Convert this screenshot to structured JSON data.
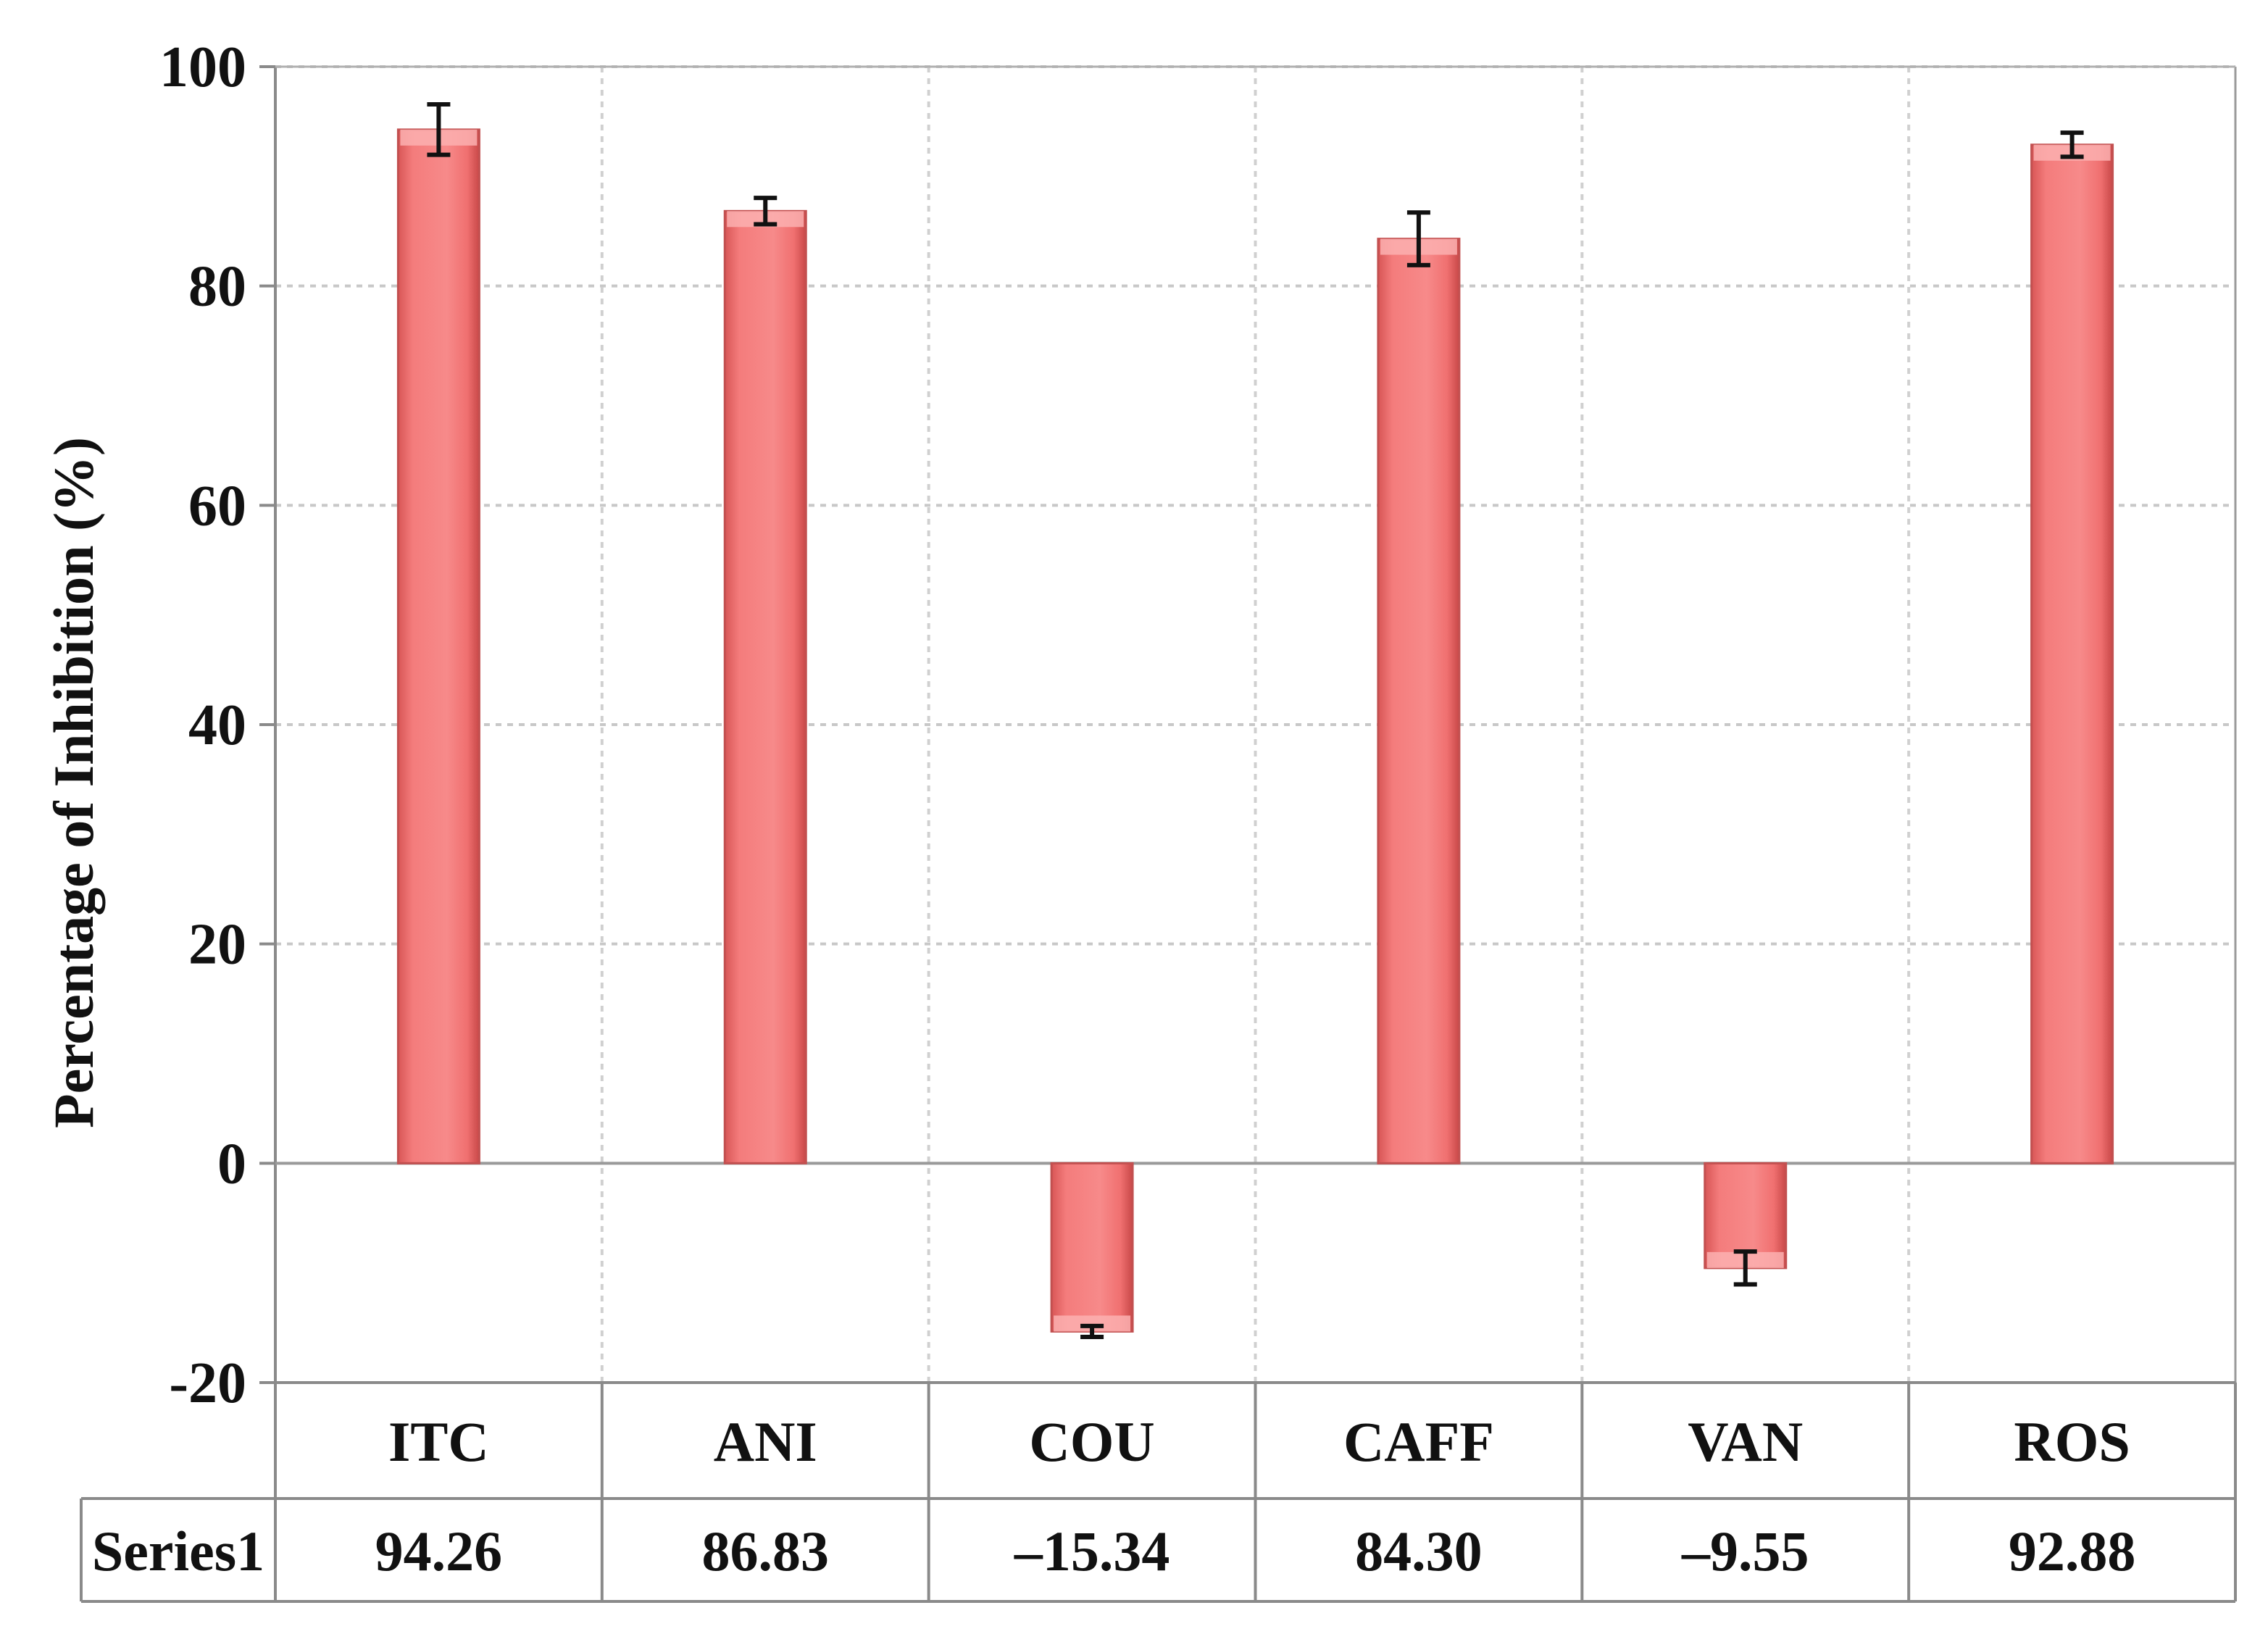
{
  "chart_data": {
    "type": "bar",
    "categories": [
      "ITC",
      "ANI",
      "COU",
      "CAFF",
      "VAN",
      "ROS"
    ],
    "series": [
      {
        "name": "Series1",
        "values": [
          94.26,
          86.83,
          -15.34,
          84.3,
          -9.55,
          92.88
        ],
        "error": [
          2.3,
          1.2,
          0.5,
          2.4,
          1.5,
          1.1
        ],
        "color": "#f47c7c"
      }
    ],
    "table_values": [
      "94.26",
      "86.83",
      "–15.34",
      "84.30",
      "–9.55",
      "92.88"
    ],
    "ylabel": "Percentage of Inhibition (%)",
    "ylim": [
      -20,
      100
    ],
    "yticks": [
      -20,
      0,
      20,
      40,
      60,
      80,
      100
    ],
    "grid": true,
    "data_table": true
  }
}
